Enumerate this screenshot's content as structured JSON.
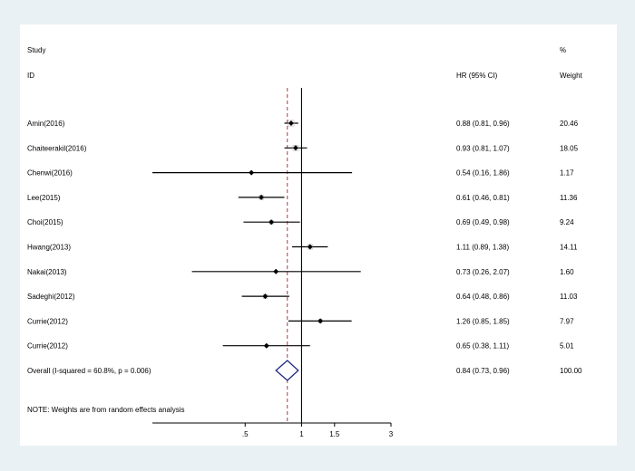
{
  "chart_data": {
    "type": "forest",
    "headers": {
      "study": "Study",
      "id": "ID",
      "hr": "HR (95% CI)",
      "percent": "%",
      "weight": "Weight"
    },
    "studies": [
      {
        "id": "Amin(2016)",
        "hr": 0.88,
        "lo": 0.81,
        "hi": 0.96,
        "ci_text": "0.88 (0.81, 0.96)",
        "weight": "20.46"
      },
      {
        "id": "Chaiteerakil(2016)",
        "hr": 0.93,
        "lo": 0.81,
        "hi": 1.07,
        "ci_text": "0.93 (0.81, 1.07)",
        "weight": "18.05"
      },
      {
        "id": "Chenwi(2016)",
        "hr": 0.54,
        "lo": 0.16,
        "hi": 1.86,
        "ci_text": "0.54 (0.16, 1.86)",
        "weight": "1.17"
      },
      {
        "id": "Lee(2015)",
        "hr": 0.61,
        "lo": 0.46,
        "hi": 0.81,
        "ci_text": "0.61 (0.46, 0.81)",
        "weight": "11.36"
      },
      {
        "id": "Choi(2015)",
        "hr": 0.69,
        "lo": 0.49,
        "hi": 0.98,
        "ci_text": "0.69 (0.49, 0.98)",
        "weight": "9.24"
      },
      {
        "id": "Hwang(2013)",
        "hr": 1.11,
        "lo": 0.89,
        "hi": 1.38,
        "ci_text": "1.11 (0.89, 1.38)",
        "weight": "14.11"
      },
      {
        "id": "Nakai(2013)",
        "hr": 0.73,
        "lo": 0.26,
        "hi": 2.07,
        "ci_text": "0.73 (0.26, 2.07)",
        "weight": "1.60"
      },
      {
        "id": "Sadeghi(2012)",
        "hr": 0.64,
        "lo": 0.48,
        "hi": 0.86,
        "ci_text": "0.64 (0.48, 0.86)",
        "weight": "11.03"
      },
      {
        "id": "Currie(2012)",
        "hr": 1.26,
        "lo": 0.85,
        "hi": 1.85,
        "ci_text": "1.26 (0.85, 1.85)",
        "weight": "7.97"
      },
      {
        "id": "Currie(2012)",
        "hr": 0.65,
        "lo": 0.38,
        "hi": 1.11,
        "ci_text": "0.65 (0.38, 1.11)",
        "weight": "5.01"
      }
    ],
    "overall": {
      "label": "Overall  (I-squared = 60.8%, p = 0.006)",
      "hr": 0.84,
      "lo": 0.73,
      "hi": 0.96,
      "ci_text": "0.84 (0.73, 0.96)",
      "weight": "100.00"
    },
    "note": "NOTE: Weights are from random effects analysis",
    "x_scale": "log",
    "xlim": [
      0.16,
      3
    ],
    "null_line": 1,
    "x_ticks": [
      {
        "value": 0.5,
        "label": ".5"
      },
      {
        "value": 1,
        "label": "1"
      },
      {
        "value": 1.5,
        "label": "1.5"
      },
      {
        "value": 3,
        "label": "3"
      }
    ],
    "colors": {
      "overall_diamond": "#1f2a80",
      "overall_line": "#b22222",
      "marker": "#000000"
    }
  }
}
